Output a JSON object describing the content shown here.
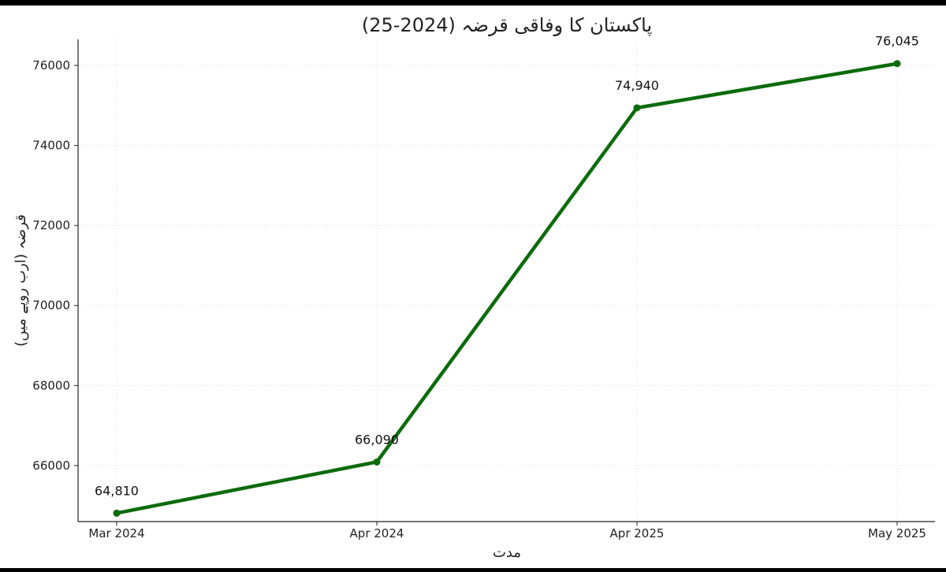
{
  "chart_data": {
    "type": "line",
    "title": "پاکستان کا وفاقی قرضہ (2024-25)",
    "xlabel": "مدت",
    "ylabel": "قرضہ (ارب روپے میں)",
    "categories": [
      "Mar 2024",
      "Apr 2024",
      "Apr 2025",
      "May 2025"
    ],
    "series": [
      {
        "values": [
          64810,
          66090,
          74940,
          76045
        ],
        "labels": [
          "64,810",
          "66,090",
          "74,940",
          "76,045"
        ]
      }
    ],
    "ylim": [
      64600,
      76650
    ],
    "yticks": [
      "66000",
      "68000",
      "70000",
      "72000",
      "74000",
      "76000"
    ],
    "grid": true,
    "line_color": "#0b6b0b"
  }
}
